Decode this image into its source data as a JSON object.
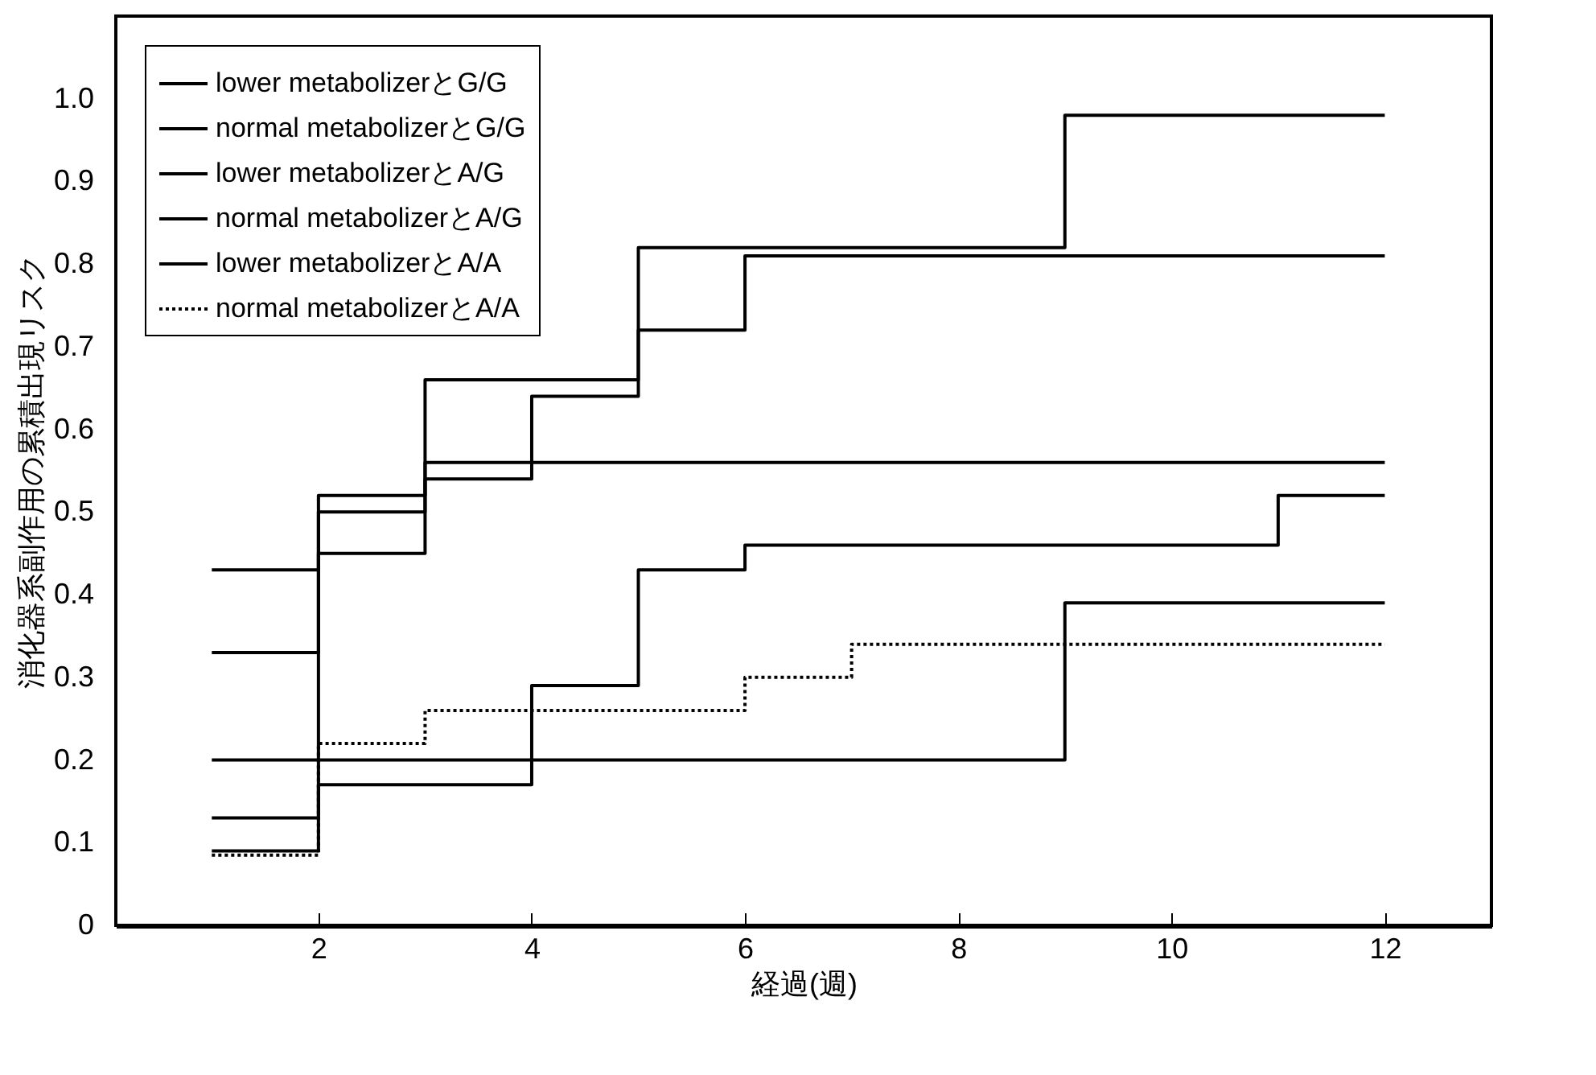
{
  "chart_data": {
    "type": "step",
    "xlabel": "経過(週)",
    "ylabel": "消化器系副作用の累積出現リスク",
    "xlim": [
      0.1,
      13
    ],
    "xticks": [
      2,
      4,
      6,
      8,
      10,
      12
    ],
    "ylim": [
      0,
      1.1
    ],
    "yticks": [
      0,
      0.1,
      0.2,
      0.3,
      0.4,
      0.5,
      0.6,
      0.7,
      0.8,
      0.9,
      {
        "value": 1,
        "label": "1.0"
      }
    ],
    "legend": "top left",
    "series": [
      {
        "name": "lower metabolizerとG/G",
        "color": "#000000",
        "line_style": "solid",
        "x": [
          1,
          2,
          3,
          5,
          9,
          12
        ],
        "values": [
          0.43,
          0.52,
          0.66,
          0.82,
          0.98,
          0.98
        ]
      },
      {
        "name": "normal metabolizerとG/G",
        "color": "#000000",
        "line_style": "solid",
        "x": [
          1,
          2,
          3,
          4,
          5,
          6,
          12
        ],
        "values": [
          0.33,
          0.5,
          0.54,
          0.64,
          0.72,
          0.81,
          0.81
        ]
      },
      {
        "name": "lower metabolizerとA/G",
        "color": "#000000",
        "line_style": "solid",
        "x": [
          1,
          2,
          3,
          12
        ],
        "values": [
          0.13,
          0.45,
          0.56,
          0.56
        ]
      },
      {
        "name": "normal metabolizerとA/G",
        "color": "#000000",
        "line_style": "solid",
        "x": [
          1,
          9,
          12
        ],
        "values": [
          0.2,
          0.39,
          0.39
        ]
      },
      {
        "name": "lower metabolizerとA/A",
        "color": "#000000",
        "line_style": "solid",
        "x": [
          1,
          2,
          4,
          5,
          6,
          11,
          12
        ],
        "values": [
          0.09,
          0.17,
          0.29,
          0.43,
          0.46,
          0.52,
          0.52
        ]
      },
      {
        "name": "normal metabolizerとA/A",
        "color": "#000000",
        "line_style": "dotted",
        "x": [
          1,
          2,
          3,
          6,
          7,
          12
        ],
        "values": [
          0.085,
          0.22,
          0.26,
          0.3,
          0.34,
          0.34
        ]
      }
    ]
  }
}
